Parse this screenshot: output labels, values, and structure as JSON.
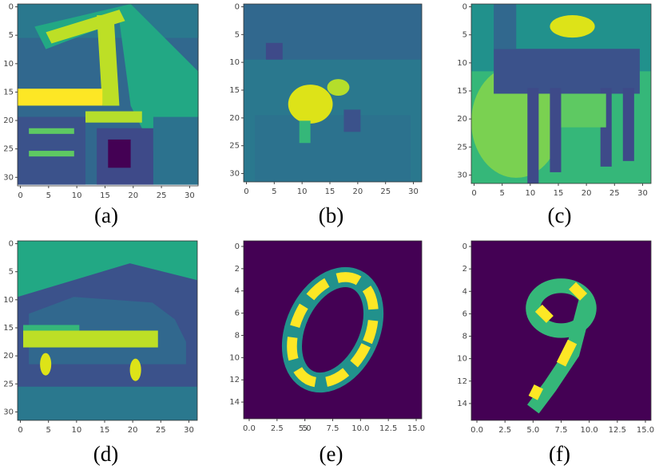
{
  "panels": [
    {
      "caption": "(a)",
      "xlim": [
        -0.5,
        31.5
      ],
      "ylim": [
        31.5,
        -0.5
      ],
      "xticks": [
        0,
        5,
        10,
        15,
        20,
        25,
        30
      ],
      "yticks": [
        0,
        5,
        10,
        15,
        20,
        25,
        30
      ]
    },
    {
      "caption": "(b)",
      "xlim": [
        -0.5,
        31.5
      ],
      "ylim": [
        31.5,
        -0.5
      ],
      "xticks": [
        0,
        5,
        10,
        15,
        20,
        25,
        30
      ],
      "yticks": [
        0,
        5,
        10,
        15,
        20,
        25,
        30
      ]
    },
    {
      "caption": "(c)",
      "xlim": [
        -0.5,
        31.5
      ],
      "ylim": [
        31.5,
        -0.5
      ],
      "xticks": [
        0,
        5,
        10,
        15,
        20,
        25,
        30
      ],
      "yticks": [
        0,
        5,
        10,
        15,
        20,
        25,
        30
      ]
    },
    {
      "caption": "(d)",
      "xlim": [
        -0.5,
        31.5
      ],
      "ylim": [
        31.5,
        -0.5
      ],
      "xticks": [
        0,
        5,
        10,
        15,
        20,
        25,
        30
      ],
      "yticks": [
        0,
        5,
        10,
        15,
        20,
        25,
        30
      ]
    },
    {
      "caption": "(e)",
      "xlim": [
        -0.5,
        15.5
      ],
      "ylim": [
        15.5,
        -0.5
      ],
      "xticks": [
        {
          "value": 0,
          "label": "0.0"
        },
        2.5,
        5,
        {
          "value": 5,
          "label": "5.0"
        },
        7.5,
        {
          "value": 10,
          "label": "10.0"
        },
        12.5,
        {
          "value": 15,
          "label": "15.0"
        }
      ],
      "yticks": [
        0,
        2,
        4,
        6,
        8,
        10,
        12,
        14
      ]
    },
    {
      "caption": "(f)",
      "xlim": [
        -0.5,
        15.5
      ],
      "ylim": [
        15.5,
        -0.5
      ],
      "xticks": [
        {
          "value": 0,
          "label": "0.0"
        },
        2.5,
        {
          "value": 5,
          "label": "5.0"
        },
        7.5,
        {
          "value": 10,
          "label": "10.0"
        },
        12.5,
        {
          "value": 15,
          "label": "15.0"
        }
      ],
      "yticks": [
        0,
        2,
        4,
        6,
        8,
        10,
        12,
        14
      ]
    }
  ]
}
